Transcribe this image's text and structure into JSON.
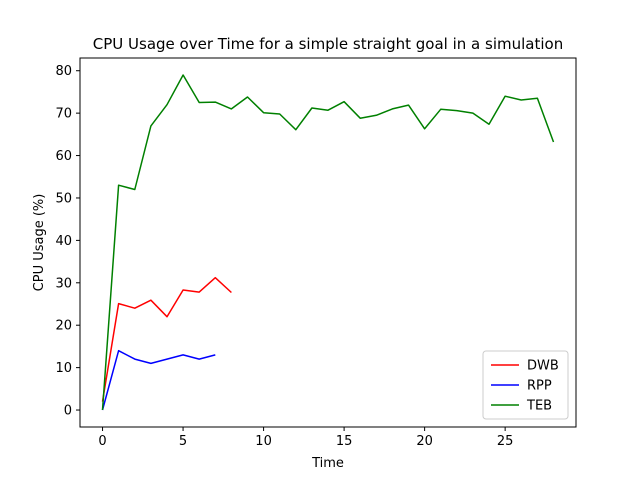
{
  "chart_data": {
    "type": "line",
    "title": "CPU Usage over Time for a simple straight goal in a simulation",
    "xlabel": "Time",
    "ylabel": "CPU Usage (%)",
    "xlim": [
      -1.4,
      29.4
    ],
    "ylim": [
      -4.0,
      83.0
    ],
    "xticks": [
      0,
      5,
      10,
      15,
      20,
      25
    ],
    "yticks": [
      0,
      10,
      20,
      30,
      40,
      50,
      60,
      70,
      80
    ],
    "grid": false,
    "legend_position": "lower-right",
    "series": [
      {
        "name": "DWB",
        "color": "#ff0000",
        "x": [
          0,
          1,
          2,
          3,
          4,
          5,
          6,
          7,
          8
        ],
        "values": [
          2.0,
          25.1,
          24.0,
          25.9,
          22.0,
          28.3,
          27.8,
          31.2,
          27.7
        ]
      },
      {
        "name": "RPP",
        "color": "#0000ff",
        "x": [
          0,
          1,
          2,
          3,
          4,
          5,
          6,
          7
        ],
        "values": [
          0.0,
          14.0,
          12.0,
          11.0,
          12.0,
          13.0,
          12.0,
          13.0
        ]
      },
      {
        "name": "TEB",
        "color": "#008000",
        "x": [
          0,
          1,
          2,
          3,
          4,
          5,
          6,
          7,
          8,
          9,
          10,
          11,
          12,
          13,
          14,
          15,
          16,
          17,
          18,
          19,
          20,
          21,
          22,
          23,
          24,
          25,
          26,
          27,
          28
        ],
        "values": [
          0.0,
          53.0,
          52.0,
          67.0,
          72.0,
          79.0,
          72.5,
          72.6,
          71.0,
          73.8,
          70.1,
          69.8,
          66.1,
          71.2,
          70.7,
          72.7,
          68.8,
          69.5,
          71.0,
          71.9,
          66.3,
          70.9,
          70.6,
          70.0,
          67.4,
          74.0,
          73.1,
          73.5,
          63.2
        ]
      }
    ]
  }
}
